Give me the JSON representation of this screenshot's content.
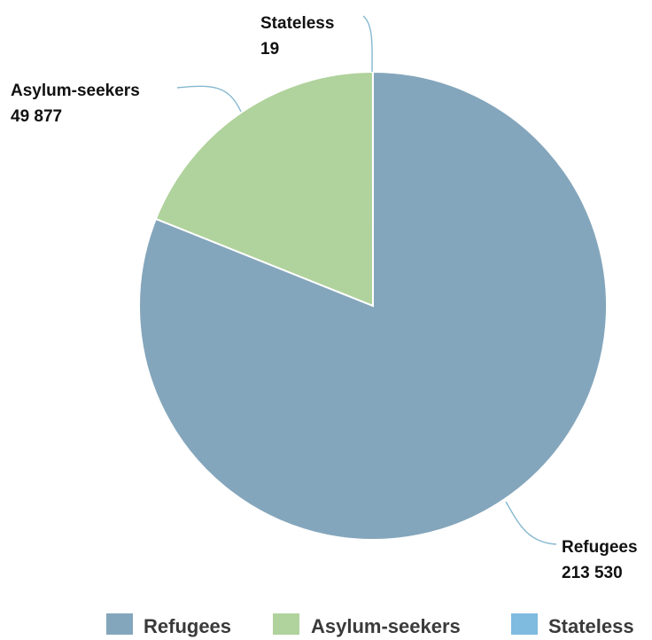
{
  "chart_data": {
    "type": "pie",
    "title": "",
    "slices": [
      {
        "name": "Refugees",
        "value": 213530,
        "value_label": "213 530",
        "color": "#84a6bc"
      },
      {
        "name": "Asylum-seekers",
        "value": 49877,
        "value_label": "49 877",
        "color": "#b0d29c"
      },
      {
        "name": "Stateless",
        "value": 19,
        "value_label": "19",
        "color": "#7fbadf"
      }
    ],
    "legend_placement": "bottom",
    "leader_color": "#84b7cf"
  }
}
